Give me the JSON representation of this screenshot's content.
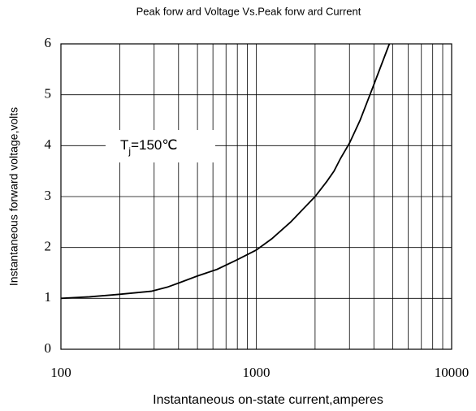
{
  "chart_data": {
    "type": "line",
    "title": "Peak forw ard Voltage Vs.Peak forw ard Current",
    "xlabel": "Instantaneous on-state current,amperes",
    "ylabel": "Instantaneous forward voltage,volts",
    "annotation": {
      "base": "T",
      "sub": "j",
      "text": "=150℃"
    },
    "xscale": "log",
    "xlim": [
      100,
      10000
    ],
    "xticks": [
      100,
      1000,
      10000
    ],
    "xminorticks": [
      200,
      300,
      400,
      500,
      600,
      700,
      800,
      900,
      2000,
      3000,
      4000,
      5000,
      6000,
      7000,
      8000,
      9000
    ],
    "ylim": [
      0,
      6
    ],
    "yticks": [
      0,
      1,
      2,
      3,
      4,
      5,
      6
    ],
    "grid": true,
    "series": [
      {
        "name": null,
        "color": "#000000",
        "x": [
          100,
          140,
          200,
          290,
          350,
          400,
          500,
          630,
          800,
          1000,
          1200,
          1500,
          2000,
          2300,
          2500,
          2700,
          3000,
          3400,
          4000,
          4800
        ],
        "values": [
          1.0,
          1.03,
          1.08,
          1.14,
          1.22,
          1.3,
          1.44,
          1.57,
          1.76,
          1.95,
          2.17,
          2.5,
          3.0,
          3.3,
          3.5,
          3.75,
          4.05,
          4.5,
          5.2,
          6.0
        ]
      }
    ]
  }
}
